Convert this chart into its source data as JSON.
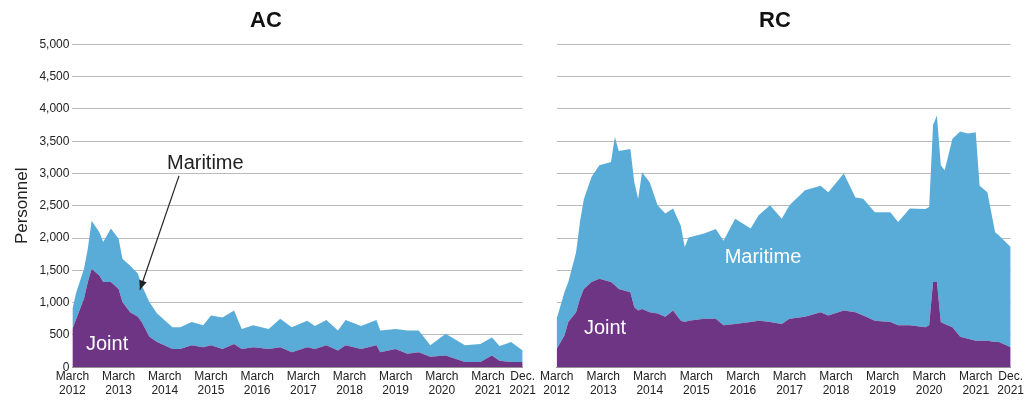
{
  "chart_data": [
    {
      "type": "area",
      "title": "AC",
      "ylabel": "Personnel",
      "stacked": true,
      "grid": "y",
      "legend": false,
      "xlim": [
        "2012-03",
        "2021-12"
      ],
      "xticks": [
        {
          "value": "2012-03",
          "label": "March 2012"
        },
        {
          "value": "2013-03",
          "label": "March 2013"
        },
        {
          "value": "2014-03",
          "label": "March 2014"
        },
        {
          "value": "2015-03",
          "label": "March 2015"
        },
        {
          "value": "2016-03",
          "label": "March 2016"
        },
        {
          "value": "2017-03",
          "label": "March 2017"
        },
        {
          "value": "2018-03",
          "label": "March 2018"
        },
        {
          "value": "2019-03",
          "label": "March 2019"
        },
        {
          "value": "2020-03",
          "label": "March 2020"
        },
        {
          "value": "2021-03",
          "label": "March 2021"
        },
        {
          "value": "2021-12",
          "label": "Dec. 2021"
        }
      ],
      "ylim": [
        0,
        5000
      ],
      "yticks": [
        0,
        {
          "value": 500,
          "label": "500"
        },
        {
          "value": 1000,
          "label": "1,000"
        },
        {
          "value": 1500,
          "label": "1,500"
        },
        {
          "value": 2000,
          "label": "2,000"
        },
        {
          "value": 2500,
          "label": "2,500"
        },
        {
          "value": 3000,
          "label": "3,000"
        },
        {
          "value": 3500,
          "label": "3,500"
        },
        {
          "value": 4000,
          "label": "4,000"
        },
        {
          "value": 4500,
          "label": "4,500"
        },
        {
          "value": 5000,
          "label": "5,000"
        }
      ],
      "x": [
        "2012-03",
        "2012-04",
        "2012-06",
        "2012-07",
        "2012-08",
        "2012-10",
        "2012-11",
        "2013-01",
        "2013-03",
        "2013-04",
        "2013-06",
        "2013-08",
        "2013-09",
        "2013-11",
        "2014-01",
        "2014-05",
        "2014-07",
        "2014-10",
        "2015-01",
        "2015-03",
        "2015-06",
        "2015-09",
        "2015-11",
        "2016-02",
        "2016-06",
        "2016-09",
        "2016-12",
        "2017-04",
        "2017-06",
        "2017-09",
        "2017-12",
        "2018-02",
        "2018-06",
        "2018-10",
        "2018-11",
        "2019-03",
        "2019-06",
        "2019-09",
        "2019-12",
        "2020-04",
        "2020-09",
        "2021-01",
        "2021-04",
        "2021-06",
        "2021-09",
        "2021-12"
      ],
      "series": [
        {
          "name": "Joint",
          "color": "#6f3585",
          "values": [
            590,
            750,
            1060,
            1320,
            1520,
            1420,
            1320,
            1320,
            1210,
            1010,
            850,
            780,
            700,
            470,
            390,
            280,
            280,
            340,
            310,
            340,
            280,
            360,
            280,
            310,
            280,
            310,
            230,
            310,
            280,
            340,
            260,
            340,
            280,
            340,
            230,
            280,
            210,
            230,
            160,
            180,
            80,
            80,
            180,
            100,
            80,
            80
          ]
        },
        {
          "name": "Maritime",
          "color": "#5aacd8",
          "values": [
            310,
            410,
            460,
            520,
            750,
            670,
            620,
            830,
            780,
            670,
            720,
            670,
            570,
            540,
            440,
            340,
            340,
            360,
            340,
            460,
            490,
            520,
            310,
            340,
            310,
            440,
            390,
            410,
            360,
            390,
            310,
            390,
            360,
            390,
            340,
            310,
            360,
            340,
            180,
            340,
            260,
            280,
            280,
            230,
            310,
            180
          ]
        }
      ]
    },
    {
      "type": "area",
      "title": "RC",
      "stacked": true,
      "grid": "y",
      "legend": false,
      "tick_labels": "x",
      "xlim": [
        "2012-03",
        "2021-12"
      ],
      "xticks": [
        {
          "value": "2012-03",
          "label": "March 2012"
        },
        {
          "value": "2013-03",
          "label": "March 2013"
        },
        {
          "value": "2014-03",
          "label": "March 2014"
        },
        {
          "value": "2015-03",
          "label": "March 2015"
        },
        {
          "value": "2016-03",
          "label": "March 2016"
        },
        {
          "value": "2017-03",
          "label": "March 2017"
        },
        {
          "value": "2018-03",
          "label": "March 2018"
        },
        {
          "value": "2019-03",
          "label": "March 2019"
        },
        {
          "value": "2020-03",
          "label": "March 2020"
        },
        {
          "value": "2021-03",
          "label": "March 2021"
        },
        {
          "value": "2021-12",
          "label": "Dec. 2021"
        }
      ],
      "ylim": [
        0,
        5000
      ],
      "yticks": [
        0,
        500,
        1000,
        1500,
        2000,
        2500,
        3000,
        3500,
        4000,
        4500,
        5000
      ],
      "x": [
        "2012-03",
        "2012-05",
        "2012-06",
        "2012-08",
        "2012-09",
        "2012-10",
        "2012-12",
        "2013-02",
        "2013-05",
        "2013-06",
        "2013-07",
        "2013-10",
        "2013-11",
        "2013-12",
        "2014-01",
        "2014-03",
        "2014-05",
        "2014-07",
        "2014-09",
        "2014-11",
        "2014-12",
        "2015-01",
        "2015-05",
        "2015-08",
        "2015-10",
        "2016-01",
        "2016-05",
        "2016-07",
        "2016-10",
        "2017-01",
        "2017-03",
        "2017-07",
        "2017-11",
        "2018-01",
        "2018-05",
        "2018-08",
        "2018-10",
        "2019-01",
        "2019-05",
        "2019-07",
        "2019-10",
        "2020-02",
        "2020-03",
        "2020-04",
        "2020-05",
        "2020-06",
        "2020-07",
        "2020-09",
        "2020-11",
        "2021-01",
        "2021-03",
        "2021-04",
        "2021-06",
        "2021-08",
        "2021-09",
        "2021-12"
      ],
      "series": [
        {
          "name": "Joint",
          "color": "#6f3585",
          "values": [
            280,
            490,
            700,
            850,
            1060,
            1210,
            1320,
            1370,
            1320,
            1270,
            1210,
            1160,
            930,
            880,
            900,
            850,
            830,
            780,
            880,
            720,
            700,
            720,
            750,
            750,
            650,
            670,
            700,
            720,
            700,
            670,
            750,
            780,
            850,
            800,
            880,
            850,
            800,
            720,
            700,
            650,
            650,
            620,
            650,
            1320,
            1320,
            700,
            670,
            620,
            470,
            440,
            410,
            410,
            410,
            390,
            390,
            310
          ]
        },
        {
          "name": "Maritime",
          "color": "#5aacd8",
          "values": [
            470,
            670,
            620,
            930,
            1190,
            1390,
            1630,
            1760,
            1860,
            2300,
            2140,
            2220,
            1940,
            1730,
            2120,
            2010,
            1680,
            1600,
            1580,
            1470,
            1160,
            1290,
            1320,
            1390,
            1310,
            1630,
            1450,
            1630,
            1810,
            1630,
            1760,
            1960,
            1960,
            1910,
            2120,
            1780,
            1810,
            1680,
            1700,
            1600,
            1810,
            1830,
            1830,
            2430,
            2580,
            2430,
            2380,
            2920,
            3180,
            3180,
            3230,
            2400,
            2300,
            1700,
            1650,
            1550
          ]
        }
      ]
    }
  ]
}
